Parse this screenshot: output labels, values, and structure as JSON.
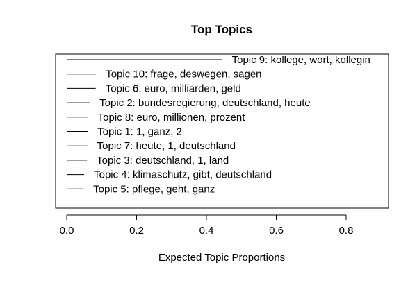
{
  "chart_data": {
    "type": "bar",
    "title": "Top Topics",
    "xlabel": "Expected Topic Proportions",
    "ylabel": "",
    "xlim": [
      0.0,
      0.92
    ],
    "x_ticks": [
      0.0,
      0.2,
      0.4,
      0.6,
      0.8
    ],
    "x_tick_labels": [
      "0.0",
      "0.2",
      "0.4",
      "0.6",
      "0.8"
    ],
    "orientation": "horizontal",
    "categories": [
      "Topic 9: kollege, wort, kollegin",
      "Topic 10: frage, deswegen, sagen",
      "Topic 6: euro, milliarden, geld",
      "Topic 2: bundesregierung, deutschland, heute",
      "Topic 8: euro, millionen, prozent",
      "Topic 1: 1, ganz, 2",
      "Topic 7: heute, 1, deutschland",
      "Topic 3: deutschland, 1, land",
      "Topic 4: klimaschutz, gibt, deutschland",
      "Topic 5: pflege, geht, ganz"
    ],
    "values": [
      0.445,
      0.084,
      0.083,
      0.066,
      0.061,
      0.06,
      0.059,
      0.058,
      0.05,
      0.048
    ],
    "grid": false,
    "line_color": "#000000"
  }
}
